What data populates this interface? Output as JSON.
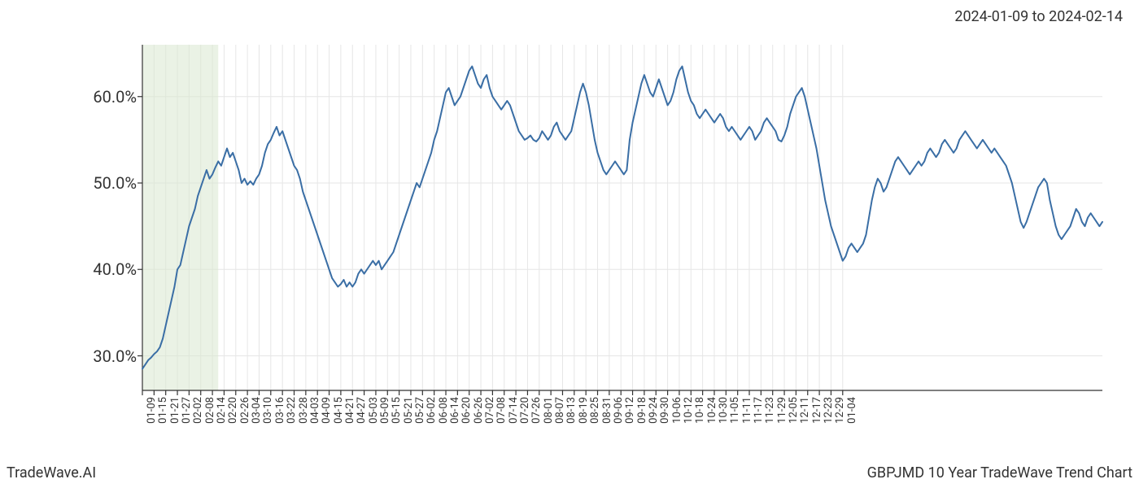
{
  "header": {
    "date_range": "2024-01-09 to 2024-02-14"
  },
  "footer": {
    "brand": "TradeWave.AI",
    "title": "GBPJMD 10 Year TradeWave Trend Chart"
  },
  "chart": {
    "type": "line",
    "line_color": "#3a6ea5",
    "line_width": 2,
    "background_color": "#ffffff",
    "grid_color": "#e6e6e6",
    "axis_color": "#333333",
    "highlight_fill": "#d9e8d0",
    "highlight_opacity": 0.55,
    "highlight_start_index": 0,
    "highlight_end_index": 26,
    "y_axis": {
      "min": 26,
      "max": 66,
      "ticks": [
        30.0,
        40.0,
        50.0,
        60.0
      ],
      "tick_labels": [
        "30.0%",
        "40.0%",
        "50.0%",
        "60.0%"
      ],
      "label_fontsize": 20
    },
    "x_axis": {
      "tick_every": 4,
      "label_fontsize": 13,
      "labels": [
        "01-09",
        "01-15",
        "01-21",
        "01-27",
        "02-02",
        "02-08",
        "02-14",
        "02-20",
        "02-26",
        "03-04",
        "03-10",
        "03-16",
        "03-22",
        "03-28",
        "04-03",
        "04-09",
        "04-15",
        "04-21",
        "04-27",
        "05-03",
        "05-09",
        "05-15",
        "05-21",
        "05-27",
        "06-02",
        "06-08",
        "06-14",
        "06-20",
        "06-26",
        "07-02",
        "07-08",
        "07-14",
        "07-20",
        "07-26",
        "08-01",
        "08-07",
        "08-13",
        "08-19",
        "08-25",
        "08-31",
        "09-06",
        "09-12",
        "09-18",
        "09-24",
        "09-30",
        "10-06",
        "10-12",
        "10-18",
        "10-24",
        "10-30",
        "11-05",
        "11-11",
        "11-17",
        "11-23",
        "11-29",
        "12-05",
        "12-11",
        "12-17",
        "12-23",
        "12-29",
        "01-04"
      ]
    },
    "series": {
      "values": [
        28.5,
        29.0,
        29.5,
        29.8,
        30.2,
        30.5,
        31.0,
        32.0,
        33.5,
        35.0,
        36.5,
        38.0,
        40.0,
        40.5,
        42.0,
        43.5,
        45.0,
        46.0,
        47.0,
        48.5,
        49.5,
        50.5,
        51.5,
        50.5,
        51.0,
        51.8,
        52.5,
        52.0,
        53.0,
        54.0,
        53.0,
        53.5,
        52.5,
        51.5,
        50.0,
        50.5,
        49.8,
        50.2,
        49.8,
        50.5,
        51.0,
        52.0,
        53.5,
        54.5,
        55.0,
        55.8,
        56.5,
        55.5,
        56.0,
        55.0,
        54.0,
        53.0,
        52.0,
        51.5,
        50.5,
        49.0,
        48.0,
        47.0,
        46.0,
        45.0,
        44.0,
        43.0,
        42.0,
        41.0,
        40.0,
        39.0,
        38.5,
        38.0,
        38.3,
        38.8,
        38.0,
        38.5,
        38.0,
        38.5,
        39.5,
        40.0,
        39.5,
        40.0,
        40.5,
        41.0,
        40.5,
        41.0,
        40.0,
        40.5,
        41.0,
        41.5,
        42.0,
        43.0,
        44.0,
        45.0,
        46.0,
        47.0,
        48.0,
        49.0,
        50.0,
        49.5,
        50.5,
        51.5,
        52.5,
        53.5,
        55.0,
        56.0,
        57.5,
        59.0,
        60.5,
        61.0,
        60.0,
        59.0,
        59.5,
        60.0,
        61.0,
        62.0,
        63.0,
        63.5,
        62.5,
        61.5,
        61.0,
        62.0,
        62.5,
        61.0,
        60.0,
        59.5,
        59.0,
        58.5,
        59.0,
        59.5,
        59.0,
        58.0,
        57.0,
        56.0,
        55.5,
        55.0,
        55.2,
        55.5,
        55.0,
        54.8,
        55.2,
        56.0,
        55.5,
        55.0,
        55.5,
        56.5,
        57.0,
        56.0,
        55.5,
        55.0,
        55.5,
        56.0,
        57.5,
        59.0,
        60.5,
        61.5,
        60.5,
        59.0,
        57.0,
        55.0,
        53.5,
        52.5,
        51.5,
        51.0,
        51.5,
        52.0,
        52.5,
        52.0,
        51.5,
        51.0,
        51.5,
        55.0,
        57.0,
        58.5,
        60.0,
        61.5,
        62.5,
        61.5,
        60.5,
        60.0,
        61.0,
        62.0,
        61.0,
        60.0,
        59.0,
        59.5,
        60.5,
        62.0,
        63.0,
        63.5,
        62.0,
        60.5,
        59.5,
        59.0,
        58.0,
        57.5,
        58.0,
        58.5,
        58.0,
        57.5,
        57.0,
        57.5,
        58.0,
        57.5,
        56.5,
        56.0,
        56.5,
        56.0,
        55.5,
        55.0,
        55.5,
        56.0,
        56.5,
        56.0,
        55.0,
        55.5,
        56.0,
        57.0,
        57.5,
        57.0,
        56.5,
        56.0,
        55.0,
        54.8,
        55.5,
        56.5,
        58.0,
        59.0,
        60.0,
        60.5,
        61.0,
        60.0,
        58.5,
        57.0,
        55.5,
        54.0,
        52.0,
        50.0,
        48.0,
        46.5,
        45.0,
        44.0,
        43.0,
        42.0,
        41.0,
        41.5,
        42.5,
        43.0,
        42.5,
        42.0,
        42.5,
        43.0,
        44.0,
        46.0,
        48.0,
        49.5,
        50.5,
        50.0,
        49.0,
        49.5,
        50.5,
        51.5,
        52.5,
        53.0,
        52.5,
        52.0,
        51.5,
        51.0,
        51.5,
        52.0,
        52.5,
        52.0,
        52.5,
        53.5,
        54.0,
        53.5,
        53.0,
        53.5,
        54.5,
        55.0,
        54.5,
        54.0,
        53.5,
        54.0,
        55.0,
        55.5,
        56.0,
        55.5,
        55.0,
        54.5,
        54.0,
        54.5,
        55.0,
        54.5,
        54.0,
        53.5,
        54.0,
        53.5,
        53.0,
        52.5,
        52.0,
        51.0,
        50.0,
        48.5,
        47.0,
        45.5,
        44.8,
        45.5,
        46.5,
        47.5,
        48.5,
        49.5,
        50.0,
        50.5,
        50.0,
        48.0,
        46.5,
        45.0,
        44.0,
        43.5,
        44.0,
        44.5,
        45.0,
        46.0,
        47.0,
        46.5,
        45.5,
        45.0,
        46.0,
        46.5,
        46.0,
        45.5,
        45.0,
        45.5
      ]
    }
  }
}
